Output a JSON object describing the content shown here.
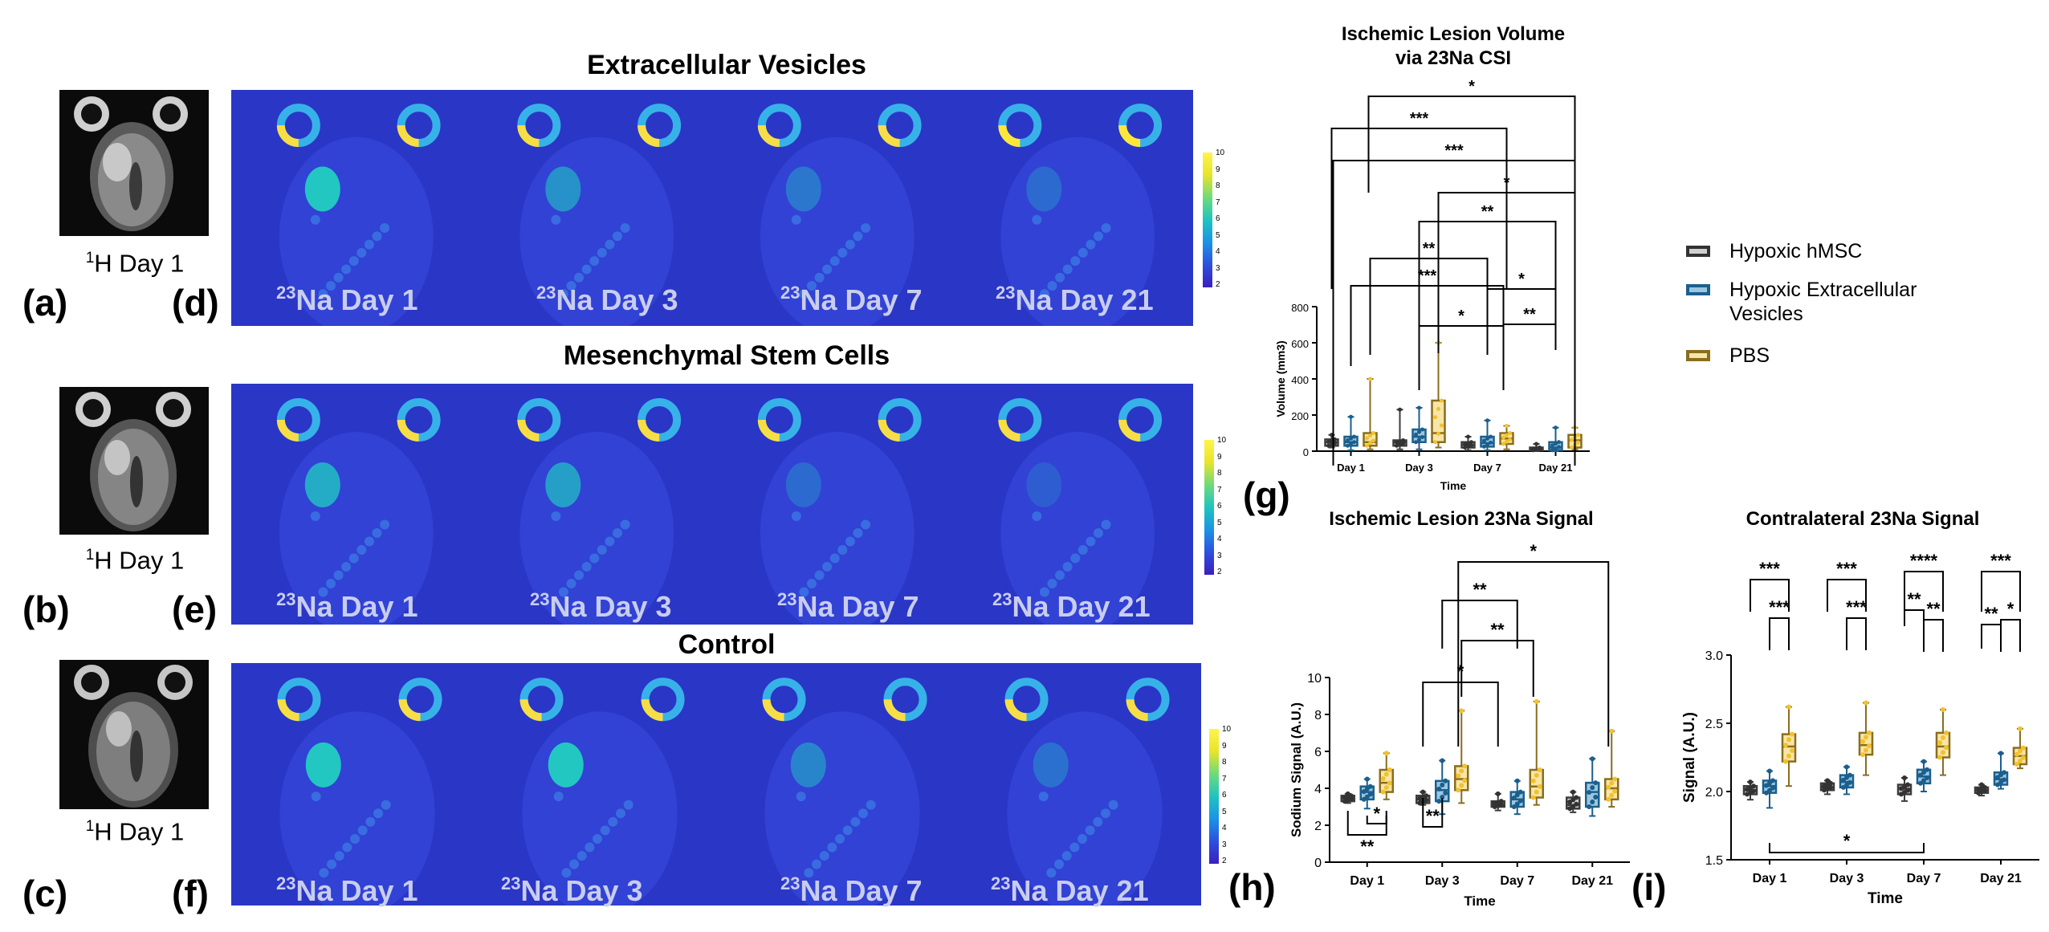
{
  "panel_letters": {
    "a": "(a)",
    "b": "(b)",
    "c": "(c)",
    "d": "(d)",
    "e": "(e)",
    "f": "(f)",
    "g": "(g)",
    "h": "(h)",
    "i": "(i)"
  },
  "rows": [
    {
      "title": "Extracellular Vesicles",
      "h1_caption": "1H Day 1",
      "labels": [
        "23Na Day 1",
        "23Na Day 3",
        "23Na Day 7",
        "23Na Day 21"
      ],
      "colorbar_ticks": [
        "10",
        "9",
        "8",
        "7",
        "6",
        "5",
        "4",
        "3",
        "2"
      ]
    },
    {
      "title": "Mesenchymal Stem Cells",
      "h1_caption": "1H Day 1",
      "labels": [
        "23Na Day 1",
        "23Na Day 3",
        "23Na Day 7",
        "23Na Day 21"
      ],
      "colorbar_ticks": [
        "10",
        "9",
        "8",
        "7",
        "6",
        "5",
        "4",
        "3",
        "2"
      ]
    },
    {
      "title": "Control",
      "h1_caption": "1H Day 1",
      "labels": [
        "23Na Day 1",
        "23Na Day 3",
        "23Na Day 7",
        "23Na Day 21"
      ],
      "colorbar_ticks": [
        "10",
        "9",
        "8",
        "7",
        "6",
        "5",
        "4",
        "3",
        "2"
      ]
    }
  ],
  "legend": [
    {
      "label": "Hypoxic hMSC",
      "color": "#3c3c3c"
    },
    {
      "label": "Hypoxic Extracellular Vesicles",
      "color": "#1b5f8c"
    },
    {
      "label": "PBS",
      "color": "#8a6d1e"
    }
  ],
  "colors": {
    "hmsc_edge": "#3c3c3c",
    "hmsc_fill": "#d0d0d0",
    "ev_edge": "#1b5f8c",
    "ev_fill": "#9cc6e0",
    "pbs_edge": "#8a6d1e",
    "pbs_fill": "#f7e6a6",
    "pbs_dot": "#f2c12e",
    "ev_dot": "#1b5f8c",
    "hmsc_dot": "#333333"
  },
  "chart_data": [
    {
      "id": "g",
      "type": "box",
      "title_line1": "Ischemic Lesion Volume",
      "title_line2": "via 23Na CSI",
      "xlabel": "Time",
      "ylabel": "Volume (mm3)",
      "ylim": [
        0,
        800
      ],
      "yticks": [
        "0",
        "200",
        "400",
        "600",
        "800"
      ],
      "categories": [
        "Day 1",
        "Day 3",
        "Day 7",
        "Day 21"
      ],
      "series": [
        {
          "name": "Hypoxic hMSC",
          "boxes": [
            [
              20,
              30,
              50,
              65,
              90
            ],
            [
              10,
              30,
              50,
              60,
              230
            ],
            [
              5,
              20,
              35,
              50,
              80
            ],
            [
              0,
              5,
              10,
              20,
              40
            ]
          ]
        },
        {
          "name": "Hypoxic Extracellular Vesicles",
          "boxes": [
            [
              5,
              30,
              50,
              80,
              190
            ],
            [
              10,
              50,
              80,
              120,
              240
            ],
            [
              5,
              25,
              45,
              80,
              170
            ],
            [
              0,
              5,
              20,
              50,
              130
            ]
          ]
        },
        {
          "name": "PBS",
          "boxes": [
            [
              10,
              30,
              50,
              100,
              400
            ],
            [
              20,
              50,
              100,
              280,
              600
            ],
            [
              10,
              40,
              70,
              100,
              140
            ],
            [
              10,
              20,
              60,
              90,
              130
            ]
          ]
        }
      ],
      "significance": [
        "*",
        "***",
        "***",
        "*",
        "**",
        "**",
        "***",
        "*",
        "*",
        "**"
      ]
    },
    {
      "id": "h",
      "type": "box",
      "title": "Ischemic Lesion 23Na Signal",
      "xlabel": "Time",
      "ylabel": "Sodium Signal (A.U.)",
      "ylim": [
        0,
        10
      ],
      "yticks": [
        "0",
        "2",
        "4",
        "6",
        "8",
        "10"
      ],
      "categories": [
        "Day 1",
        "Day 3",
        "Day 7",
        "Day 21"
      ],
      "series": [
        {
          "name": "Hypoxic hMSC",
          "boxes": [
            [
              3.2,
              3.3,
              3.5,
              3.6,
              3.7
            ],
            [
              3.1,
              3.2,
              3.4,
              3.6,
              3.8
            ],
            [
              2.8,
              3.0,
              3.1,
              3.3,
              3.7
            ],
            [
              2.7,
              2.9,
              3.1,
              3.5,
              3.8
            ]
          ]
        },
        {
          "name": "Hypoxic Extracellular Vesicles",
          "boxes": [
            [
              2.9,
              3.4,
              3.8,
              4.1,
              4.5
            ],
            [
              2.6,
              3.3,
              3.9,
              4.4,
              5.5
            ],
            [
              2.6,
              3.0,
              3.4,
              3.8,
              4.4
            ],
            [
              2.5,
              3.0,
              3.8,
              4.3,
              5.6
            ]
          ]
        },
        {
          "name": "PBS",
          "boxes": [
            [
              3.4,
              3.8,
              4.3,
              5.0,
              5.9
            ],
            [
              3.2,
              3.9,
              4.5,
              5.2,
              8.2
            ],
            [
              3.1,
              3.5,
              4.1,
              5.0,
              8.7
            ],
            [
              3.0,
              3.4,
              4.0,
              4.5,
              7.1
            ]
          ]
        }
      ],
      "significance": [
        "*",
        "**",
        "**",
        "*",
        "**",
        "*",
        "**"
      ]
    },
    {
      "id": "i",
      "type": "box",
      "title": "Contralateral 23Na Signal",
      "xlabel": "Time",
      "ylabel": "Signal (A.U.)",
      "ylim": [
        1.5,
        3.0
      ],
      "yticks": [
        "1.5",
        "2.0",
        "2.5",
        "3.0"
      ],
      "categories": [
        "Day 1",
        "Day 3",
        "Day 7",
        "Day 21"
      ],
      "series": [
        {
          "name": "Hypoxic hMSC",
          "boxes": [
            [
              1.94,
              1.98,
              2.01,
              2.04,
              2.07
            ],
            [
              1.98,
              2.01,
              2.03,
              2.06,
              2.08
            ],
            [
              1.93,
              1.98,
              2.02,
              2.05,
              2.1
            ],
            [
              1.97,
              1.99,
              2.01,
              2.03,
              2.05
            ]
          ]
        },
        {
          "name": "Hypoxic Extracellular Vesicles",
          "boxes": [
            [
              1.88,
              1.99,
              2.04,
              2.08,
              2.15
            ],
            [
              1.98,
              2.03,
              2.07,
              2.12,
              2.18
            ],
            [
              2.0,
              2.06,
              2.11,
              2.16,
              2.22
            ],
            [
              2.02,
              2.05,
              2.09,
              2.14,
              2.28
            ]
          ]
        },
        {
          "name": "PBS",
          "boxes": [
            [
              2.04,
              2.22,
              2.33,
              2.42,
              2.62
            ],
            [
              2.12,
              2.27,
              2.34,
              2.43,
              2.65
            ],
            [
              2.12,
              2.25,
              2.33,
              2.43,
              2.6
            ],
            [
              2.17,
              2.2,
              2.26,
              2.32,
              2.46
            ]
          ]
        }
      ],
      "significance": [
        "***",
        "***",
        "***",
        "***",
        "****",
        "**",
        "**",
        "***",
        "*",
        "**",
        "*"
      ]
    }
  ]
}
